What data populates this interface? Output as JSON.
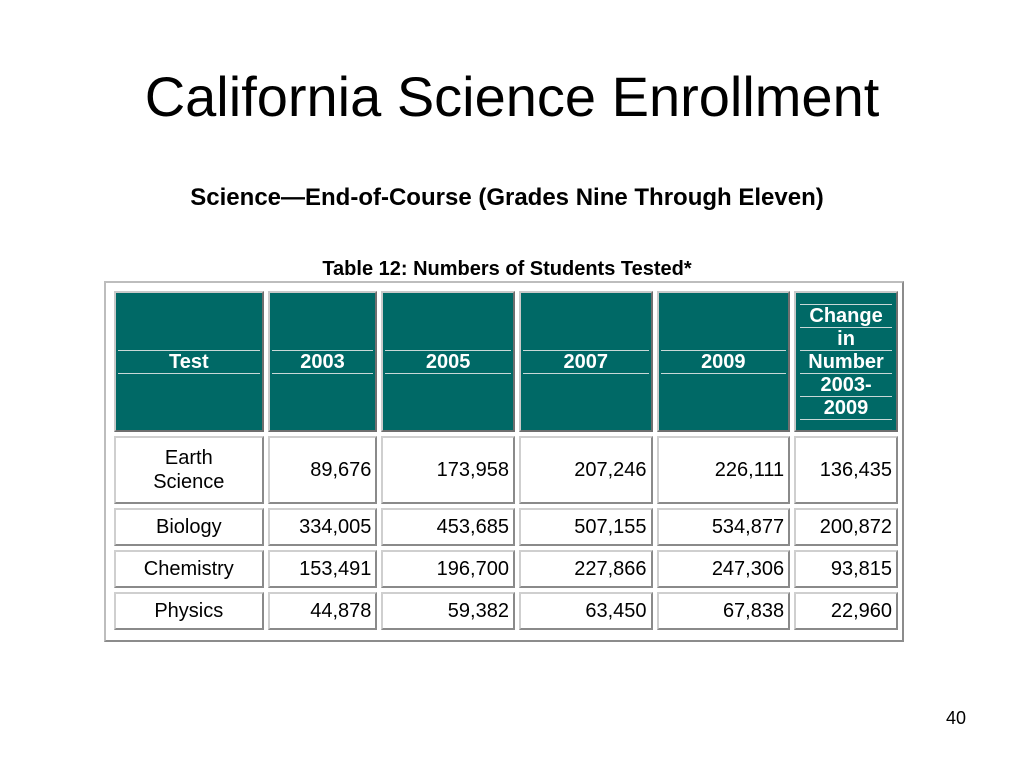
{
  "slide": {
    "title": "California Science Enrollment",
    "subtitle": "Science—End-of-Course (Grades Nine Through Eleven)",
    "page_number": "40"
  },
  "table": {
    "caption": "Table 12: Numbers of Students Tested*",
    "header_bg_color": "#006966",
    "headers": {
      "test": "Test",
      "y2003": "2003",
      "y2005": "2005",
      "y2007": "2007",
      "y2009": "2009",
      "change_lines": [
        "Change",
        "in",
        "Number",
        "2003-",
        "2009"
      ]
    },
    "rows": [
      {
        "name_lines": [
          "Earth",
          "Science"
        ],
        "v2003": "89,676",
        "v2005": "173,958",
        "v2007": "207,246",
        "v2009": "226,111",
        "change": "136,435"
      },
      {
        "name_lines": [
          "Biology"
        ],
        "v2003": "334,005",
        "v2005": "453,685",
        "v2007": "507,155",
        "v2009": "534,877",
        "change": "200,872"
      },
      {
        "name_lines": [
          "Chemistry"
        ],
        "v2003": "153,491",
        "v2005": "196,700",
        "v2007": "227,866",
        "v2009": "247,306",
        "change": "93,815"
      },
      {
        "name_lines": [
          "Physics"
        ],
        "v2003": "44,878",
        "v2005": "59,382",
        "v2007": "63,450",
        "v2009": "67,838",
        "change": "22,960"
      }
    ]
  }
}
